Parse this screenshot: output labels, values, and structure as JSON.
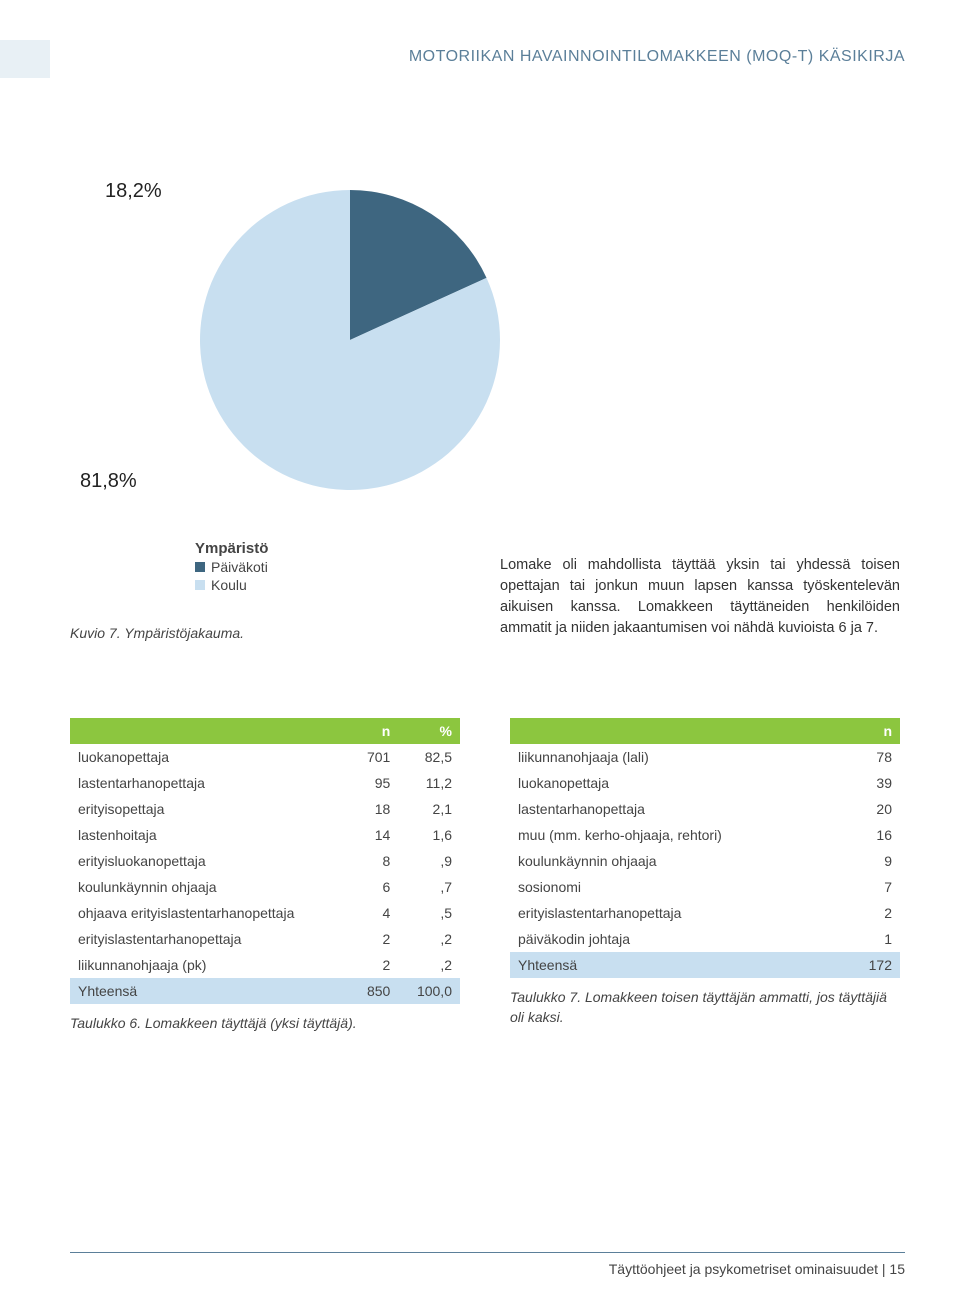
{
  "header": {
    "title": "MOTORIIKAN HAVAINNOINTILOMAKKEEN (MOQ-T) KÄSIKIRJA"
  },
  "pie": {
    "type": "pie",
    "slices": [
      {
        "label": "18,2%",
        "value": 18.2,
        "color": "#3e6680"
      },
      {
        "label": "81,8%",
        "value": 81.8,
        "color": "#c8dff0"
      }
    ],
    "radius": 150
  },
  "legend": {
    "title": "Ympäristö",
    "items": [
      {
        "label": "Päiväkoti",
        "color": "#3e6680"
      },
      {
        "label": "Koulu",
        "color": "#c8dff0"
      }
    ]
  },
  "caption_fig": "Kuvio 7. Ympäristöjakauma.",
  "body": "Lomake oli mahdollista täyttää yksin tai yhdessä toisen opettajan tai jonkun muun lapsen kanssa työskentelevän aikuisen kanssa. Lomakkeen täyttäneiden henkilöiden ammatit ja niiden jakaantumisen voi nähdä kuvioista 6 ja 7.",
  "table6": {
    "headers": [
      "n",
      "%"
    ],
    "rows": [
      [
        "luokanopettaja",
        "701",
        "82,5"
      ],
      [
        "lastentarhanopettaja",
        "95",
        "11,2"
      ],
      [
        "erityisopettaja",
        "18",
        "2,1"
      ],
      [
        "lastenhoitaja",
        "14",
        "1,6"
      ],
      [
        "erityisluokanopettaja",
        "8",
        ",9"
      ],
      [
        "koulunkäynnin ohjaaja",
        "6",
        ",7"
      ],
      [
        "ohjaava erityislastentarhanopettaja",
        "4",
        ",5"
      ],
      [
        "erityislastentarhanopettaja",
        "2",
        ",2"
      ],
      [
        "liikunnanohjaaja (pk)",
        "2",
        ",2"
      ]
    ],
    "total": [
      "Yhteensä",
      "850",
      "100,0"
    ],
    "caption": "Taulukko 6. Lomakkeen täyttäjä (yksi täyttäjä).",
    "header_bg": "#8cc63f",
    "total_bg": "#c8dff0"
  },
  "table7": {
    "headers": [
      "n"
    ],
    "rows": [
      [
        "liikunnanohjaaja (lali)",
        "78"
      ],
      [
        "luokanopettaja",
        "39"
      ],
      [
        "lastentarhanopettaja",
        "20"
      ],
      [
        "muu (mm. kerho-ohjaaja, rehtori)",
        "16"
      ],
      [
        "koulunkäynnin ohjaaja",
        "9"
      ],
      [
        "sosionomi",
        "7"
      ],
      [
        "erityislastentarhanopettaja",
        "2"
      ],
      [
        "päiväkodin johtaja",
        "1"
      ]
    ],
    "total": [
      "Yhteensä",
      "172"
    ],
    "caption": "Taulukko 7. Lomakkeen toisen täyttäjän ammatti, jos täyttäjiä oli kaksi.",
    "header_bg": "#8cc63f",
    "total_bg": "#c8dff0"
  },
  "footer": {
    "text": "Täyttöohjeet ja psykometriset ominaisuudet",
    "page": "15"
  }
}
